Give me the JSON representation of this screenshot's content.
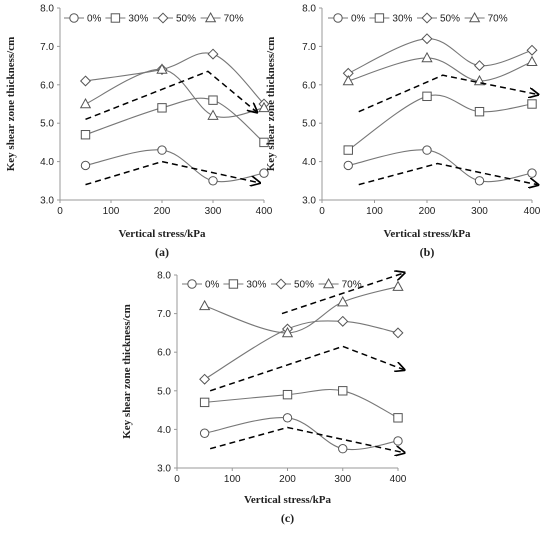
{
  "figure": {
    "panels": [
      "a",
      "b",
      "c"
    ]
  },
  "chart_data": [
    {
      "id": "a",
      "type": "line",
      "panel_label": "(a)",
      "xlabel": "Vertical stress/kPa",
      "ylabel": "Key shear zone thickness/cm",
      "xlim": [
        0,
        400
      ],
      "ylim": [
        3.0,
        8.0
      ],
      "xticks": [
        "0",
        "100",
        "200",
        "300",
        "400"
      ],
      "yticks": [
        "3.0",
        "4.0",
        "5.0",
        "6.0",
        "7.0",
        "8.0"
      ],
      "legend_position": "top",
      "x": [
        50,
        200,
        300,
        400
      ],
      "series": [
        {
          "name": "0%",
          "marker": "circle",
          "values": [
            3.9,
            4.3,
            3.5,
            3.7
          ]
        },
        {
          "name": "30%",
          "marker": "square",
          "values": [
            4.7,
            5.4,
            5.6,
            4.5
          ]
        },
        {
          "name": "50%",
          "marker": "diamond",
          "values": [
            6.1,
            6.4,
            6.8,
            5.5
          ]
        },
        {
          "name": "70%",
          "marker": "triangle",
          "values": [
            5.5,
            6.4,
            5.2,
            5.4
          ]
        }
      ],
      "trend_arrows": [
        {
          "points": [
            [
              50,
              3.4
            ],
            [
              200,
              4.0
            ],
            [
              390,
              3.45
            ]
          ]
        },
        {
          "points": [
            [
              50,
              5.1
            ],
            [
              290,
              6.35
            ],
            [
              385,
              5.3
            ]
          ]
        }
      ]
    },
    {
      "id": "b",
      "type": "line",
      "panel_label": "(b)",
      "xlabel": "Vertical stress/kPa",
      "ylabel": "Key shear zone thickness/cm",
      "xlim": [
        0,
        400
      ],
      "ylim": [
        3.0,
        8.0
      ],
      "xticks": [
        "0",
        "100",
        "200",
        "300",
        "400"
      ],
      "yticks": [
        "3.0",
        "4.0",
        "5.0",
        "6.0",
        "7.0",
        "8.0"
      ],
      "legend_position": "top",
      "x": [
        50,
        200,
        300,
        400
      ],
      "series": [
        {
          "name": "0%",
          "marker": "circle",
          "values": [
            3.9,
            4.3,
            3.5,
            3.7
          ]
        },
        {
          "name": "30%",
          "marker": "square",
          "values": [
            4.3,
            5.7,
            5.3,
            5.5
          ]
        },
        {
          "name": "50%",
          "marker": "diamond",
          "values": [
            6.3,
            7.2,
            6.5,
            6.9
          ]
        },
        {
          "name": "70%",
          "marker": "triangle",
          "values": [
            6.1,
            6.7,
            6.1,
            6.6
          ]
        }
      ],
      "trend_arrows": [
        {
          "points": [
            [
              70,
              3.4
            ],
            [
              220,
              3.95
            ],
            [
              410,
              3.4
            ]
          ]
        },
        {
          "points": [
            [
              70,
              5.3
            ],
            [
              230,
              6.25
            ],
            [
              410,
              5.75
            ]
          ]
        }
      ]
    },
    {
      "id": "c",
      "type": "line",
      "panel_label": "(c)",
      "xlabel": "Vertical stress/kPa",
      "ylabel": "Key shear zone thickness/cm",
      "xlim": [
        0,
        400
      ],
      "ylim": [
        3.0,
        8.0
      ],
      "xticks": [
        "0",
        "100",
        "200",
        "300",
        "400"
      ],
      "yticks": [
        "3.0",
        "4.0",
        "5.0",
        "6.0",
        "7.0",
        "8.0"
      ],
      "legend_position": "top",
      "x": [
        50,
        200,
        300,
        400
      ],
      "series": [
        {
          "name": "0%",
          "marker": "circle",
          "values": [
            3.9,
            4.3,
            3.5,
            3.7
          ]
        },
        {
          "name": "30%",
          "marker": "square",
          "values": [
            4.7,
            4.9,
            5.0,
            4.3
          ]
        },
        {
          "name": "50%",
          "marker": "diamond",
          "values": [
            5.3,
            6.6,
            6.8,
            6.5
          ]
        },
        {
          "name": "70%",
          "marker": "triangle",
          "values": [
            7.2,
            6.5,
            7.3,
            7.7
          ]
        }
      ],
      "trend_arrows": [
        {
          "points": [
            [
              60,
              3.5
            ],
            [
              200,
              4.05
            ],
            [
              410,
              3.4
            ]
          ]
        },
        {
          "points": [
            [
              60,
              5.0
            ],
            [
              300,
              6.15
            ],
            [
              410,
              5.55
            ]
          ]
        },
        {
          "points": [
            [
              190,
              7.0
            ],
            [
              410,
              8.05
            ]
          ]
        }
      ]
    }
  ]
}
